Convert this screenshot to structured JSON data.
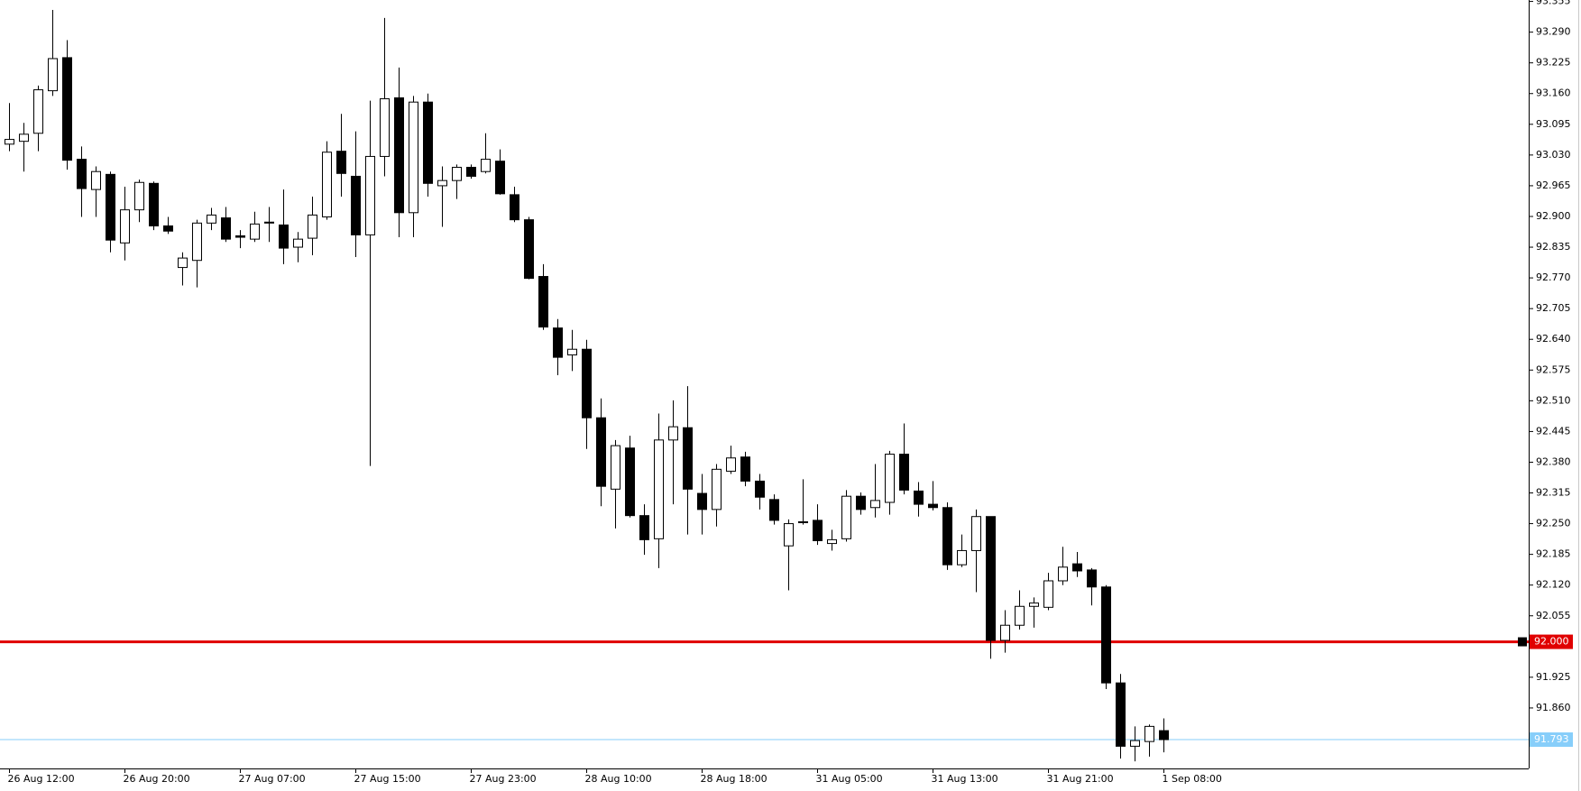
{
  "chart_data": {
    "type": "candlestick",
    "categories": [
      "26 Aug 12:00",
      null,
      null,
      null,
      null,
      null,
      null,
      null,
      "26 Aug 20:00",
      null,
      null,
      null,
      null,
      null,
      null,
      null,
      "27 Aug 07:00",
      null,
      null,
      null,
      null,
      null,
      null,
      null,
      "27 Aug 15:00",
      null,
      null,
      null,
      null,
      null,
      null,
      null,
      "27 Aug 23:00",
      null,
      null,
      null,
      null,
      null,
      null,
      null,
      "28 Aug 10:00",
      null,
      null,
      null,
      null,
      null,
      null,
      null,
      "28 Aug 18:00",
      null,
      null,
      null,
      null,
      null,
      null,
      null,
      "31 Aug 05:00",
      null,
      null,
      null,
      null,
      null,
      null,
      null,
      "31 Aug 13:00",
      null,
      null,
      null,
      null,
      null,
      null,
      null,
      "31 Aug 21:00",
      null,
      null,
      null,
      null,
      null,
      null,
      null,
      "1 Sep 08:00"
    ],
    "open": [
      93.053,
      93.059,
      93.076,
      93.166,
      93.236,
      93.021,
      92.957,
      92.989,
      92.844,
      92.914,
      92.97,
      92.88,
      92.792,
      92.807,
      92.886,
      92.897,
      92.859,
      92.852,
      92.888,
      92.882,
      92.835,
      92.854,
      92.899,
      93.038,
      92.985,
      92.861,
      93.027,
      93.151,
      92.908,
      93.142,
      92.965,
      92.976,
      93.004,
      92.995,
      93.017,
      92.946,
      92.893,
      92.773,
      92.664,
      92.607,
      92.619,
      92.474,
      92.323,
      92.41,
      92.267,
      92.218,
      92.427,
      92.453,
      92.314,
      92.28,
      92.361,
      92.391,
      92.34,
      92.301,
      92.203,
      92.252,
      92.257,
      92.208,
      92.218,
      92.308,
      92.284,
      92.295,
      92.397,
      92.319,
      92.291,
      92.284,
      92.163,
      92.193,
      92.265,
      92.003,
      92.035,
      92.075,
      92.073,
      92.129,
      92.165,
      92.152,
      92.116,
      91.913,
      91.779,
      91.789,
      91.812
    ],
    "high": [
      93.14,
      93.098,
      93.177,
      93.337,
      93.273,
      93.048,
      93.006,
      92.995,
      92.963,
      92.978,
      92.974,
      92.899,
      92.824,
      92.893,
      92.918,
      92.92,
      92.871,
      92.91,
      92.92,
      92.957,
      92.867,
      92.942,
      93.059,
      93.117,
      93.08,
      93.145,
      93.32,
      93.215,
      93.155,
      93.16,
      93.006,
      93.01,
      93.01,
      93.076,
      93.042,
      92.963,
      92.899,
      92.799,
      92.683,
      92.66,
      92.639,
      92.515,
      92.427,
      92.436,
      92.291,
      92.483,
      92.511,
      92.541,
      92.355,
      92.376,
      92.415,
      92.402,
      92.355,
      92.312,
      92.259,
      92.344,
      92.291,
      92.237,
      92.321,
      92.316,
      92.376,
      92.404,
      92.462,
      92.338,
      92.34,
      92.295,
      92.227,
      92.28,
      92.265,
      92.067,
      92.109,
      92.094,
      92.146,
      92.201,
      92.19,
      92.156,
      92.12,
      91.932,
      91.821,
      91.825,
      91.838
    ],
    "low": [
      93.038,
      92.995,
      93.038,
      93.155,
      92.999,
      92.899,
      92.899,
      92.824,
      92.807,
      92.888,
      92.871,
      92.863,
      92.754,
      92.75,
      92.871,
      92.846,
      92.833,
      92.846,
      92.846,
      92.799,
      92.803,
      92.818,
      92.893,
      92.942,
      92.814,
      92.372,
      92.985,
      92.856,
      92.856,
      92.942,
      92.878,
      92.937,
      92.98,
      92.991,
      92.946,
      92.888,
      92.767,
      92.66,
      92.564,
      92.573,
      92.408,
      92.287,
      92.24,
      92.263,
      92.184,
      92.156,
      92.291,
      92.227,
      92.227,
      92.244,
      92.355,
      92.329,
      92.28,
      92.248,
      92.109,
      92.248,
      92.205,
      92.193,
      92.212,
      92.269,
      92.263,
      92.269,
      92.312,
      92.265,
      92.278,
      92.152,
      92.158,
      92.105,
      91.964,
      91.977,
      92.026,
      92.03,
      92.067,
      92.12,
      92.137,
      92.077,
      91.9,
      91.753,
      91.747,
      91.757,
      91.766
    ],
    "close": [
      93.063,
      93.074,
      93.168,
      93.234,
      93.019,
      92.959,
      92.995,
      92.85,
      92.914,
      92.972,
      92.88,
      92.869,
      92.812,
      92.886,
      92.903,
      92.852,
      92.856,
      92.884,
      92.886,
      92.833,
      92.852,
      92.903,
      93.036,
      92.991,
      92.861,
      93.027,
      93.149,
      92.908,
      93.142,
      92.97,
      92.976,
      93.004,
      92.985,
      93.021,
      92.948,
      92.893,
      92.769,
      92.666,
      92.602,
      92.619,
      92.474,
      92.329,
      92.415,
      92.267,
      92.216,
      92.427,
      92.455,
      92.323,
      92.28,
      92.365,
      92.389,
      92.34,
      92.306,
      92.257,
      92.25,
      92.254,
      92.214,
      92.216,
      92.308,
      92.28,
      92.299,
      92.397,
      92.321,
      92.291,
      92.284,
      92.163,
      92.193,
      92.265,
      92.003,
      92.035,
      92.075,
      92.082,
      92.129,
      92.158,
      92.15,
      92.116,
      91.913,
      91.779,
      91.791,
      91.821,
      91.793
    ],
    "up_color": "#ffffff",
    "down_color": "#000000",
    "wick_color": "#000000",
    "ylim": [
      91.732,
      93.358
    ],
    "yticks": [
      93.355,
      {
        "value": 93.29,
        "label": "93.290"
      },
      93.225,
      {
        "value": 93.16,
        "label": "93.160"
      },
      93.095,
      {
        "value": 93.03,
        "label": "93.030"
      },
      92.965,
      {
        "value": 92.9,
        "label": "92.900"
      },
      92.835,
      {
        "value": 92.77,
        "label": "92.770"
      },
      92.705,
      {
        "value": 92.64,
        "label": "92.640"
      },
      92.575,
      {
        "value": 92.51,
        "label": "92.510"
      },
      92.445,
      {
        "value": 92.38,
        "label": "92.380"
      },
      92.315,
      {
        "value": 92.25,
        "label": "92.250"
      },
      92.185,
      {
        "value": 92.12,
        "label": "92.120"
      },
      92.055,
      91.925,
      {
        "value": 91.86,
        "label": "91.860"
      }
    ],
    "hlines": [
      {
        "value": 92.0,
        "label": "92.000",
        "color": "#e00000"
      },
      {
        "value": 91.793,
        "label": "91.793",
        "color": "#87cefa"
      }
    ]
  }
}
